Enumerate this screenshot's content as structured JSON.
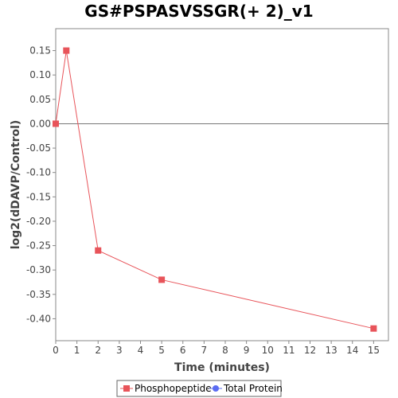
{
  "chart_data": {
    "type": "line",
    "title": "GS#PSPASVSSGR(+ 2)_v1",
    "xlabel": "Time (minutes)",
    "ylabel": "log2(dDAVP/Control)",
    "xlim": [
      0,
      15.7
    ],
    "ylim": [
      -0.445,
      0.195
    ],
    "x_ticks": [
      0,
      1,
      2,
      3,
      4,
      5,
      6,
      7,
      8,
      9,
      10,
      11,
      12,
      13,
      14,
      15
    ],
    "y_ticks": [
      0.15,
      0.1,
      0.05,
      0.0,
      -0.05,
      -0.1,
      -0.15,
      -0.2,
      -0.25,
      -0.3,
      -0.35,
      -0.4
    ],
    "x_tick_labels": [
      "0",
      "1",
      "2",
      "3",
      "4",
      "5",
      "6",
      "7",
      "8",
      "9",
      "10",
      "11",
      "12",
      "13",
      "14",
      "15"
    ],
    "y_tick_labels": [
      "0.15",
      "0.10",
      "0.05",
      "0.00",
      "-0.05",
      "-0.10",
      "-0.15",
      "-0.20",
      "-0.25",
      "-0.30",
      "-0.35",
      "-0.40"
    ],
    "zero_line": true,
    "grid": false,
    "legend_position": "bottom-center",
    "series": [
      {
        "name": "Phosphopeptide",
        "color": "#e8545a",
        "marker": "square",
        "x": [
          0,
          0.5,
          2,
          5,
          15
        ],
        "y": [
          0.0,
          0.15,
          -0.26,
          -0.32,
          -0.42
        ]
      },
      {
        "name": "Total Protein",
        "color": "#5b6cf2",
        "marker": "circle",
        "x": [],
        "y": []
      }
    ]
  }
}
